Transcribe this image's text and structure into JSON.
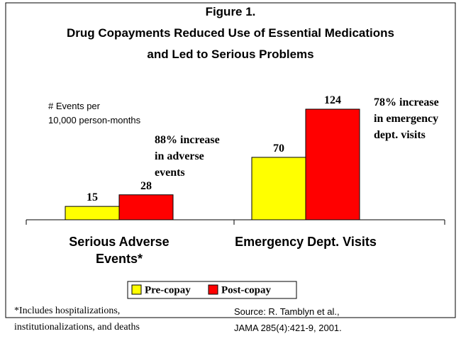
{
  "chart_data": {
    "type": "bar",
    "title": [
      "Figure 1.",
      "Drug Copayments Reduced Use of Essential Medications",
      "and Led to Serious Problems"
    ],
    "y_label": [
      "# Events per",
      "10,000 person-months"
    ],
    "categories": [
      "Serious Adverse Events*",
      "Emergency Dept. Visits"
    ],
    "series": [
      {
        "name": "Pre-copay",
        "color": "#ffff00",
        "values": [
          15,
          70
        ]
      },
      {
        "name": "Post-copay",
        "color": "#ff0000",
        "values": [
          28,
          124
        ]
      }
    ],
    "annotations": [
      [
        "88% increase",
        "in adverse",
        "events"
      ],
      [
        "78% increase",
        "in emergency",
        "dept. visits"
      ]
    ],
    "footnote": [
      "*Includes hospitalizations,",
      "institutionalizations, and deaths"
    ],
    "source": [
      "Source: R. Tamblyn et al.,",
      "JAMA 285(4):421-9, 2001."
    ]
  }
}
